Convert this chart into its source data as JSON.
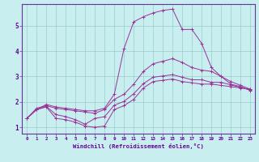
{
  "xlabel": "Windchill (Refroidissement éolien,°C)",
  "bg_color": "#c8eef0",
  "line_color": "#993399",
  "grid_color": "#99cccc",
  "axis_color": "#663399",
  "text_color": "#660099",
  "xlim": [
    -0.5,
    23.5
  ],
  "ylim": [
    0.75,
    5.85
  ],
  "xticks": [
    0,
    1,
    2,
    3,
    4,
    5,
    6,
    7,
    8,
    9,
    10,
    11,
    12,
    13,
    14,
    15,
    16,
    17,
    18,
    19,
    20,
    21,
    22,
    23
  ],
  "yticks": [
    1,
    2,
    3,
    4,
    5
  ],
  "series": [
    [
      1.35,
      1.7,
      1.8,
      1.35,
      1.3,
      1.2,
      1.05,
      1.0,
      1.05,
      1.7,
      1.85,
      2.1,
      2.55,
      2.8,
      2.85,
      2.9,
      2.8,
      2.75,
      2.7,
      2.7,
      2.65,
      2.6,
      2.55,
      2.5
    ],
    [
      1.35,
      1.7,
      1.82,
      1.5,
      1.42,
      1.3,
      1.12,
      1.35,
      1.42,
      1.87,
      2.02,
      2.32,
      2.72,
      2.97,
      3.02,
      3.07,
      2.97,
      2.87,
      2.87,
      2.77,
      2.77,
      2.67,
      2.57,
      2.47
    ],
    [
      1.35,
      1.75,
      1.85,
      1.75,
      1.7,
      1.65,
      1.6,
      1.55,
      1.7,
      2.1,
      2.3,
      2.7,
      3.2,
      3.5,
      3.6,
      3.7,
      3.55,
      3.35,
      3.25,
      3.2,
      3.0,
      2.8,
      2.65,
      2.5
    ],
    [
      1.35,
      1.7,
      1.9,
      1.8,
      1.75,
      1.7,
      1.65,
      1.65,
      1.75,
      2.3,
      4.1,
      5.15,
      5.35,
      5.5,
      5.6,
      5.65,
      4.85,
      4.85,
      4.3,
      3.35,
      3.0,
      2.7,
      2.6,
      2.45
    ]
  ]
}
